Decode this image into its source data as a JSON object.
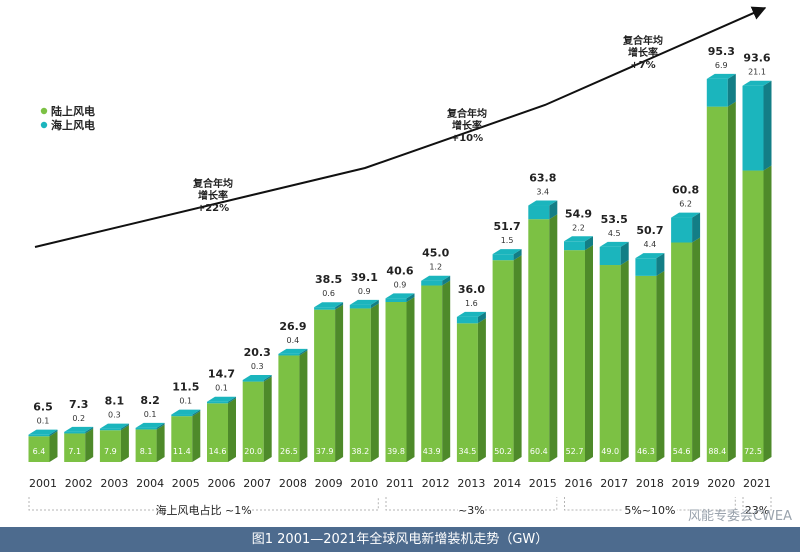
{
  "chart_data": {
    "type": "bar",
    "stacked": true,
    "title": "",
    "categories": [
      "2001",
      "2002",
      "2003",
      "2004",
      "2005",
      "2006",
      "2007",
      "2008",
      "2009",
      "2010",
      "2011",
      "2012",
      "2013",
      "2014",
      "2015",
      "2016",
      "2017",
      "2018",
      "2019",
      "2020",
      "2021"
    ],
    "series": [
      {
        "name": "陆上风电",
        "values": [
          6.4,
          7.1,
          7.9,
          8.1,
          11.4,
          14.6,
          20.0,
          26.5,
          37.9,
          38.2,
          39.8,
          43.9,
          34.5,
          50.2,
          60.4,
          52.7,
          49.0,
          46.3,
          54.6,
          88.4,
          72.5
        ],
        "labels": [
          "6.4",
          "7.1",
          "7.9",
          "8.1",
          "11.4",
          "14.6",
          "20.0",
          "26.5",
          "37.9",
          "38.2",
          "39.8",
          "43.9",
          "34.5",
          "50.2",
          "60.4",
          "52.7",
          "49.0",
          "46.3",
          "54.6",
          "88.4",
          "72.5"
        ]
      },
      {
        "name": "海上风电",
        "values": [
          0.1,
          0.2,
          0.3,
          0.1,
          0.1,
          0.1,
          0.3,
          0.4,
          0.6,
          0.9,
          0.9,
          1.2,
          1.6,
          1.5,
          3.4,
          2.2,
          4.5,
          4.4,
          6.2,
          6.9,
          21.1
        ],
        "labels": [
          "0.1",
          "0.2",
          "0.3",
          "0.1",
          "0.1",
          "0.1",
          "0.3",
          "0.4",
          "0.6",
          "0.9",
          "0.9",
          "1.2",
          "1.6",
          "1.5",
          "3.4",
          "2.2",
          "4.5",
          "4.4",
          "6.2",
          "6.9",
          "21.1"
        ]
      }
    ],
    "totals": [
      "6.5",
      "7.3",
      "8.1",
      "8.2",
      "11.5",
      "14.7",
      "20.3",
      "26.9",
      "38.5",
      "39.1",
      "40.6",
      "45.0",
      "36.0",
      "51.7",
      "63.8",
      "54.9",
      "53.5",
      "50.7",
      "60.8",
      "95.3",
      "93.6"
    ],
    "ylim": [
      0,
      100
    ],
    "colors": {
      "onshore": "#7cc144",
      "onshore_side": "#4e8a2a",
      "offshore": "#1bb5bd",
      "offshore_side": "#137e86"
    },
    "legend": {
      "position": "top-left",
      "items": [
        "陆上风电",
        "海上风电"
      ]
    },
    "growth_annotations": [
      {
        "lines": [
          "复合年均",
          "增长率",
          "+22%"
        ]
      },
      {
        "lines": [
          "复合年均",
          "增长率",
          "+10%"
        ]
      },
      {
        "lines": [
          "复合年均",
          "增长率",
          "+7%"
        ]
      }
    ],
    "share_brackets": [
      {
        "from": "2001",
        "to": "2010",
        "label": "海上风电占比 ~1%"
      },
      {
        "from": "2011",
        "to": "2015",
        "label": "~3%"
      },
      {
        "from": "2016",
        "to": "2020",
        "label": "5%~10%"
      },
      {
        "from": "2021",
        "to": "2021",
        "label": "23%"
      }
    ]
  },
  "caption": "图1 2001—2021年全球风电新增装机走势（GW）",
  "watermark": "风能专委会CWEA"
}
